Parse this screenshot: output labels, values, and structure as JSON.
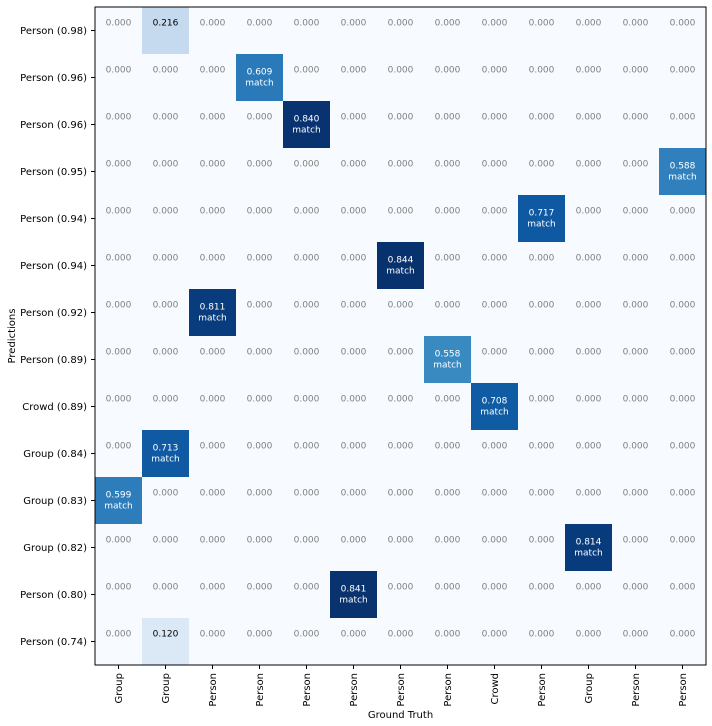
{
  "chart_data": {
    "type": "heatmap",
    "xlabel": "Ground Truth",
    "ylabel": "Predictions",
    "x_labels": [
      "Group",
      "Group",
      "Person",
      "Person",
      "Person",
      "Person",
      "Person",
      "Person",
      "Crowd",
      "Person",
      "Group",
      "Person",
      "Person"
    ],
    "y_labels": [
      "Person (0.98)",
      "Person (0.96)",
      "Person (0.96)",
      "Person (0.95)",
      "Person (0.94)",
      "Person (0.94)",
      "Person (0.92)",
      "Person (0.89)",
      "Crowd (0.89)",
      "Group (0.84)",
      "Group (0.83)",
      "Group (0.82)",
      "Person (0.80)",
      "Person (0.74)"
    ],
    "values": [
      [
        0.0,
        0.216,
        0.0,
        0.0,
        0.0,
        0.0,
        0.0,
        0.0,
        0.0,
        0.0,
        0.0,
        0.0,
        0.0
      ],
      [
        0.0,
        0.0,
        0.0,
        0.609,
        0.0,
        0.0,
        0.0,
        0.0,
        0.0,
        0.0,
        0.0,
        0.0,
        0.0
      ],
      [
        0.0,
        0.0,
        0.0,
        0.0,
        0.84,
        0.0,
        0.0,
        0.0,
        0.0,
        0.0,
        0.0,
        0.0,
        0.0
      ],
      [
        0.0,
        0.0,
        0.0,
        0.0,
        0.0,
        0.0,
        0.0,
        0.0,
        0.0,
        0.0,
        0.0,
        0.0,
        0.588
      ],
      [
        0.0,
        0.0,
        0.0,
        0.0,
        0.0,
        0.0,
        0.0,
        0.0,
        0.0,
        0.717,
        0.0,
        0.0,
        0.0
      ],
      [
        0.0,
        0.0,
        0.0,
        0.0,
        0.0,
        0.0,
        0.844,
        0.0,
        0.0,
        0.0,
        0.0,
        0.0,
        0.0
      ],
      [
        0.0,
        0.0,
        0.811,
        0.0,
        0.0,
        0.0,
        0.0,
        0.0,
        0.0,
        0.0,
        0.0,
        0.0,
        0.0
      ],
      [
        0.0,
        0.0,
        0.0,
        0.0,
        0.0,
        0.0,
        0.0,
        0.558,
        0.0,
        0.0,
        0.0,
        0.0,
        0.0
      ],
      [
        0.0,
        0.0,
        0.0,
        0.0,
        0.0,
        0.0,
        0.0,
        0.0,
        0.708,
        0.0,
        0.0,
        0.0,
        0.0
      ],
      [
        0.0,
        0.713,
        0.0,
        0.0,
        0.0,
        0.0,
        0.0,
        0.0,
        0.0,
        0.0,
        0.0,
        0.0,
        0.0
      ],
      [
        0.599,
        0.0,
        0.0,
        0.0,
        0.0,
        0.0,
        0.0,
        0.0,
        0.0,
        0.0,
        0.0,
        0.0,
        0.0
      ],
      [
        0.0,
        0.0,
        0.0,
        0.0,
        0.0,
        0.0,
        0.0,
        0.0,
        0.0,
        0.0,
        0.814,
        0.0,
        0.0
      ],
      [
        0.0,
        0.0,
        0.0,
        0.0,
        0.0,
        0.841,
        0.0,
        0.0,
        0.0,
        0.0,
        0.0,
        0.0,
        0.0
      ],
      [
        0.0,
        0.12,
        0.0,
        0.0,
        0.0,
        0.0,
        0.0,
        0.0,
        0.0,
        0.0,
        0.0,
        0.0,
        0.0
      ]
    ],
    "matches": [
      [
        1,
        3
      ],
      [
        2,
        4
      ],
      [
        3,
        12
      ],
      [
        4,
        9
      ],
      [
        5,
        6
      ],
      [
        6,
        2
      ],
      [
        7,
        7
      ],
      [
        8,
        8
      ],
      [
        9,
        1
      ],
      [
        10,
        0
      ],
      [
        11,
        10
      ],
      [
        12,
        5
      ]
    ],
    "match_label": "match",
    "colormap": "Blues",
    "color_range": [
      0,
      0.85
    ],
    "grid": false
  }
}
